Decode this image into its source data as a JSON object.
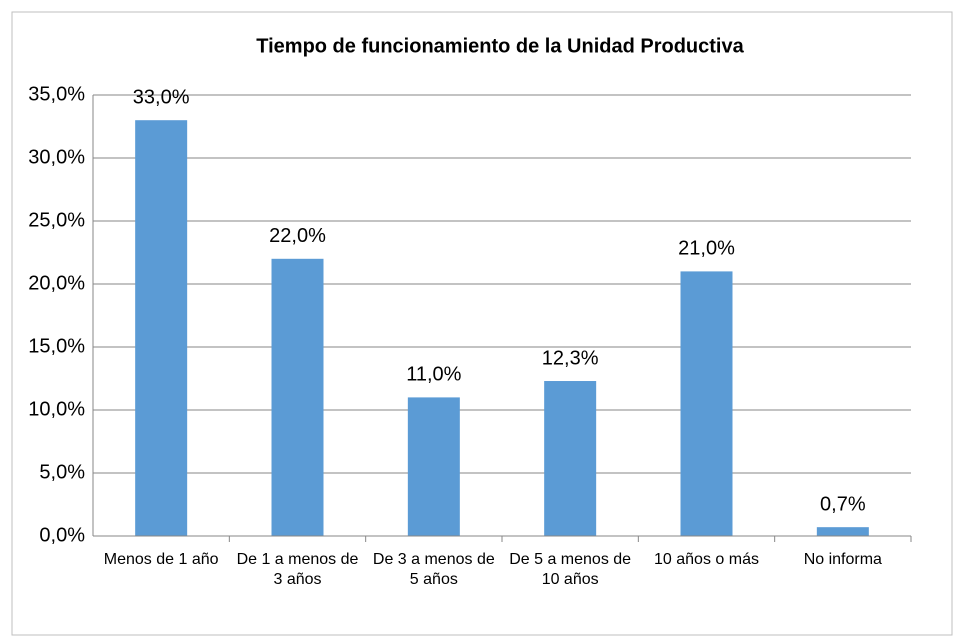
{
  "chart_data": {
    "type": "bar",
    "title": "Tiempo de funcionamiento de la Unidad Productiva",
    "categories": [
      "Menos de 1 año",
      "De 1 a menos de 3 años",
      "De 3 a menos de 5 años",
      "De 5 a menos de 10 años",
      "10 años o más",
      "No informa"
    ],
    "values": [
      33,
      22,
      11,
      12.3,
      21,
      0.7
    ],
    "value_labels": [
      "33,0%",
      "22,0%",
      "11,0%",
      "12,3%",
      "21,0%",
      "0,7%"
    ],
    "color": "#5b9bd5",
    "ylim": [
      0,
      35
    ],
    "yticks": [
      {
        "value": 0,
        "label": "0,0%"
      },
      {
        "value": 5,
        "label": "5,0%"
      },
      {
        "value": 10,
        "label": "10,0%"
      },
      {
        "value": 15,
        "label": "15,0%"
      },
      {
        "value": 20,
        "label": "20,0%"
      },
      {
        "value": 25,
        "label": "25,0%"
      },
      {
        "value": 30,
        "label": "30,0%"
      },
      {
        "value": 35,
        "label": "35,0%"
      }
    ],
    "grid": true
  }
}
